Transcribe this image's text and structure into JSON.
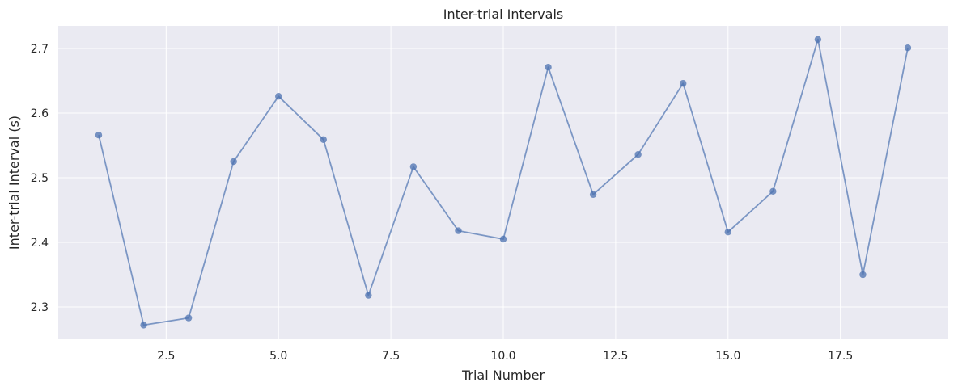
{
  "chart_data": {
    "type": "line",
    "title": "Inter-trial Intervals",
    "xlabel": "Trial Number",
    "ylabel": "Inter-trial Interval (s)",
    "xlim": [
      0.1,
      19.9
    ],
    "ylim": [
      2.25,
      2.735
    ],
    "xticks": [
      2.5,
      5.0,
      7.5,
      10.0,
      12.5,
      15.0,
      17.5
    ],
    "xtick_labels": [
      "2.5",
      "5.0",
      "7.5",
      "10.0",
      "12.5",
      "15.0",
      "17.5"
    ],
    "yticks": [
      2.3,
      2.4,
      2.5,
      2.6,
      2.7
    ],
    "ytick_labels": [
      "2.3",
      "2.4",
      "2.5",
      "2.6",
      "2.7"
    ],
    "grid": true,
    "markers": true,
    "color": "#4c72b0",
    "background": "#eaeaf2",
    "x": [
      1,
      2,
      3,
      4,
      5,
      6,
      7,
      8,
      9,
      10,
      11,
      12,
      13,
      14,
      15,
      16,
      17,
      18,
      19
    ],
    "y": [
      2.566,
      2.272,
      2.283,
      2.525,
      2.626,
      2.559,
      2.318,
      2.517,
      2.418,
      2.405,
      2.671,
      2.474,
      2.536,
      2.646,
      2.416,
      2.479,
      2.714,
      2.35,
      2.701
    ]
  }
}
